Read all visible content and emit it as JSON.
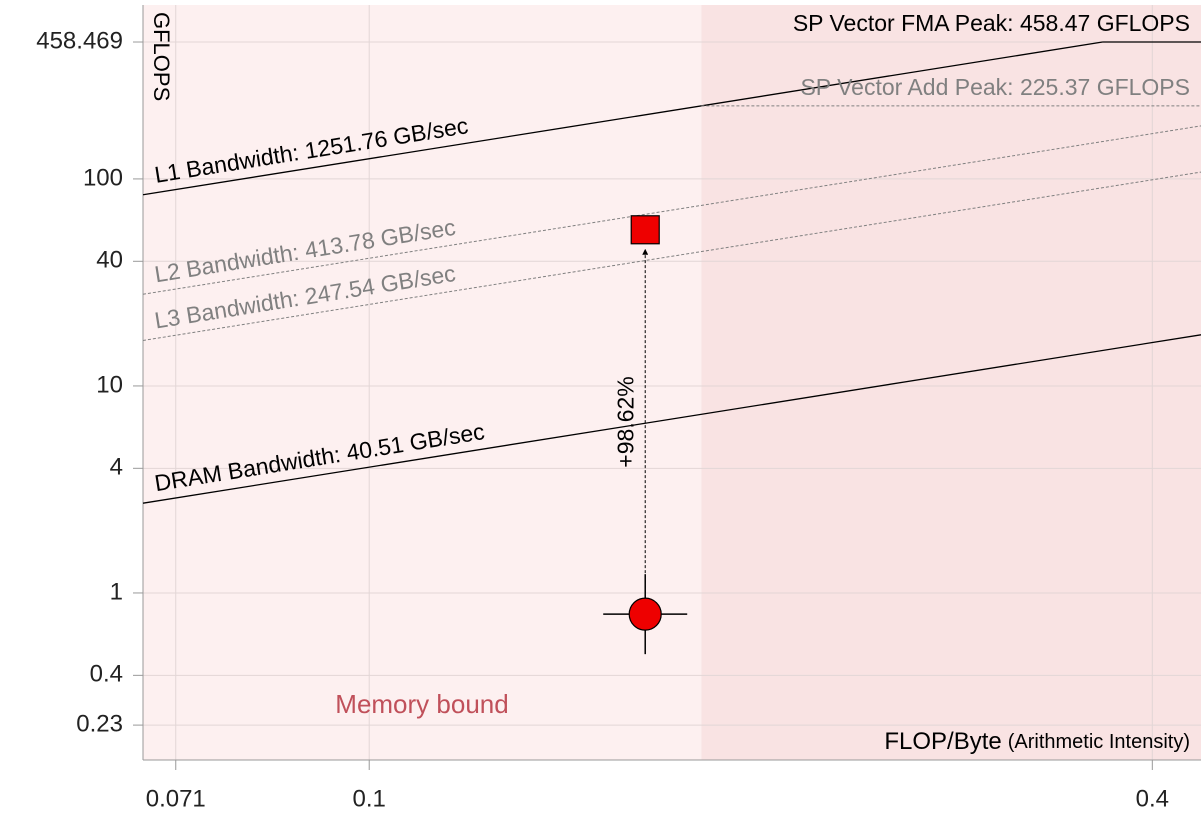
{
  "chart_data": {
    "type": "roofline",
    "ylabel": "GFLOPS",
    "xlabel": "FLOP/Byte",
    "xlabel_note": "(Arithmetic Intensity)",
    "log_x": true,
    "log_y": true,
    "grid": true,
    "xlim": [
      0.067,
      0.436
    ],
    "ylim": [
      0.156,
      692
    ],
    "xticks": [
      0.071,
      0.1,
      0.4
    ],
    "yticks": [
      458.469,
      100,
      40,
      10,
      4,
      1,
      0.4,
      0.23
    ],
    "bandwidths": [
      {
        "name": "L1 Bandwidth: 1251.76 GB/sec",
        "value": 1251.76,
        "dashed": false,
        "color": "#000000"
      },
      {
        "name": "L2 Bandwidth: 413.78 GB/sec",
        "value": 413.78,
        "dashed": true,
        "color": "#808080"
      },
      {
        "name": "L3 Bandwidth: 247.54 GB/sec",
        "value": 247.54,
        "dashed": true,
        "color": "#808080"
      },
      {
        "name": "DRAM Bandwidth: 40.51 GB/sec",
        "value": 40.51,
        "dashed": false,
        "color": "#000000"
      }
    ],
    "peaks": [
      {
        "name": "SP Vector FMA Peak: 458.47 GFLOPS",
        "value": 458.47,
        "dashed": false,
        "color": "#000000"
      },
      {
        "name": "SP Vector Add Peak: 225.37 GFLOPS",
        "value": 225.37,
        "dashed": true,
        "color": "#808080"
      }
    ],
    "points": [
      {
        "shape": "circle",
        "x": 0.163,
        "y": 0.79,
        "color": "#ee0000"
      },
      {
        "shape": "square",
        "x": 0.163,
        "y": 56.8,
        "color": "#ee0000"
      }
    ],
    "annotation": "+98.62%",
    "region_label": "Memory bound"
  }
}
